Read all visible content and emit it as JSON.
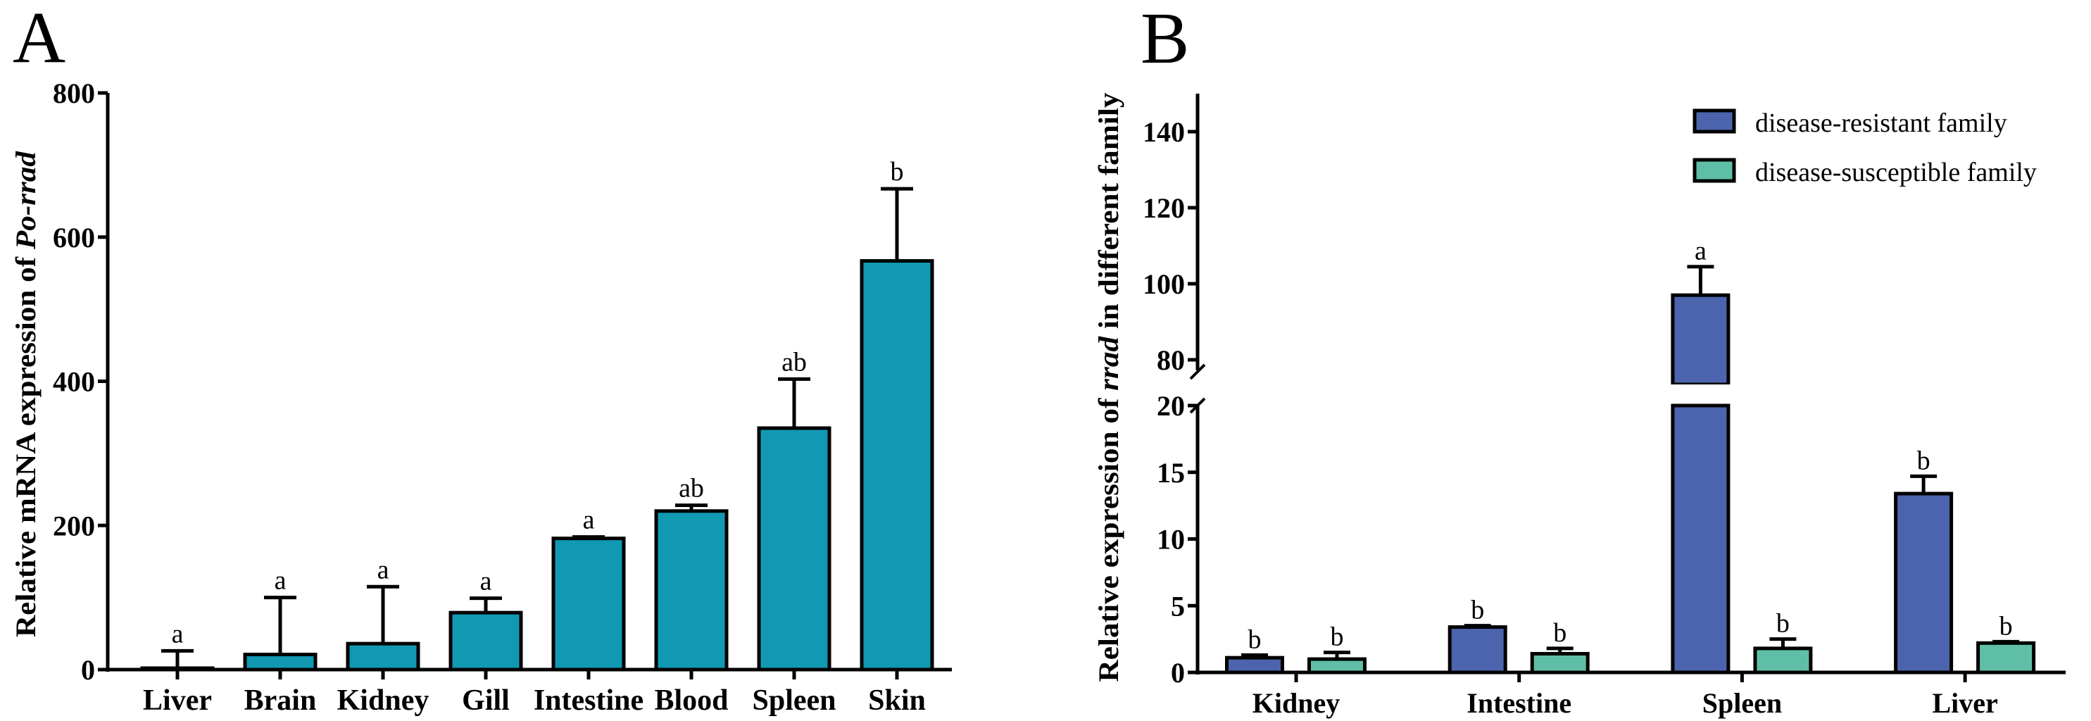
{
  "chart_data": [
    {
      "type": "bar",
      "panel_label": "A",
      "ylabel_prefix": "Relative mRNA expression of ",
      "ylabel_italic": "Po-rrad",
      "xlabel": "",
      "ylim": [
        0,
        800
      ],
      "yticks": [
        "0",
        "200",
        "400",
        "600",
        "800"
      ],
      "categories": [
        "Liver",
        "Brain",
        "Kidney",
        "Gill",
        "Intestine",
        "Blood",
        "Spleen",
        "Skin"
      ],
      "values": [
        2,
        21,
        36,
        79,
        182,
        220,
        335,
        567
      ],
      "error_upper": [
        26,
        100,
        115,
        99,
        184,
        228,
        403,
        667
      ],
      "significance": [
        "a",
        "a",
        "a",
        "a",
        "a",
        "ab",
        "ab",
        "b"
      ],
      "color": "#1199b3",
      "grid": false
    },
    {
      "type": "bar",
      "panel_label": "B",
      "ylabel_prefix": "Relative expression of ",
      "ylabel_italic": "rrad",
      "ylabel_suffix": " in different family",
      "xlabel": "",
      "y_axis_break": {
        "lower": [
          0,
          20
        ],
        "upper": [
          75,
          150
        ]
      },
      "yticks_lower": [
        "0",
        "5",
        "10",
        "15",
        "20"
      ],
      "yticks_upper": [
        "80",
        "100",
        "120",
        "140"
      ],
      "categories": [
        "Kidney",
        "Intestine",
        "Spleen",
        "Liver"
      ],
      "legend_position": "top-right",
      "grid": false,
      "series": [
        {
          "name": "disease-resistant family",
          "color": "#4b64ad",
          "values": [
            1.1,
            3.4,
            97,
            13.4
          ],
          "error_upper": [
            1.3,
            3.5,
            104.5,
            14.7
          ],
          "significance": [
            "b",
            "b",
            "a",
            "b"
          ]
        },
        {
          "name": "disease-susceptible family",
          "color": "#5fbfa6",
          "values": [
            1.0,
            1.4,
            1.8,
            2.2
          ],
          "error_upper": [
            1.5,
            1.8,
            2.5,
            2.3
          ],
          "significance": [
            "b",
            "b",
            "b",
            "b"
          ]
        }
      ]
    }
  ]
}
